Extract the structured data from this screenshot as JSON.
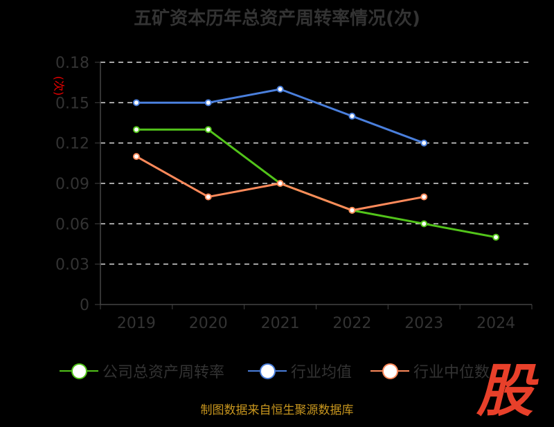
{
  "chart_data": {
    "type": "line",
    "title": "五矿资本历年总资产周转率情况(次)",
    "ylabel": "(次)",
    "categories": [
      "2019",
      "2020",
      "2021",
      "2022",
      "2023",
      "2024"
    ],
    "ylim": [
      0,
      0.18
    ],
    "yticks": [
      "0",
      "0.03",
      "0.06",
      "0.09",
      "0.12",
      "0.15",
      "0.18"
    ],
    "series": [
      {
        "name": "公司总资产周转率",
        "color": "#52c41a",
        "values": [
          0.13,
          0.13,
          0.09,
          0.07,
          0.06,
          0.05
        ]
      },
      {
        "name": "行业均值",
        "color": "#4a7fdc",
        "values": [
          0.15,
          0.15,
          0.16,
          0.14,
          0.12,
          null
        ]
      },
      {
        "name": "行业中位数",
        "color": "#ff8a5b",
        "values": [
          0.11,
          0.08,
          0.09,
          0.07,
          0.08,
          null
        ]
      }
    ],
    "legend": "bottom",
    "grid": true
  },
  "source": "制图数据来自恒生聚源数据库",
  "logo": "股"
}
